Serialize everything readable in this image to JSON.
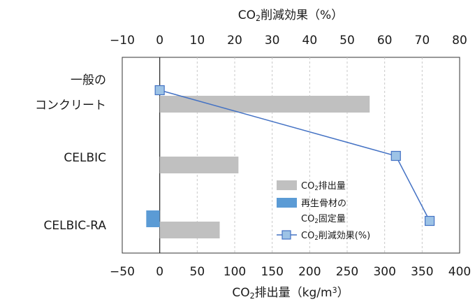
{
  "chart_data": {
    "type": "bar",
    "orientation": "horizontal",
    "categories": [
      [
        "一般の",
        "コンクリート"
      ],
      [
        "CELBIC"
      ],
      [
        "CELBIC-RA"
      ]
    ],
    "series": [
      {
        "name": "CO₂排出量",
        "kind": "bar",
        "axis": "bottom",
        "color": "#c0c0c0",
        "values": [
          280,
          105,
          80
        ]
      },
      {
        "name": "再生骨材の CO₂固定量",
        "kind": "bar",
        "axis": "bottom",
        "color": "#5b9bd5",
        "values": [
          null,
          null,
          -18
        ]
      },
      {
        "name": "CO₂削減効果(%)",
        "kind": "line",
        "axis": "top",
        "color": "#4472c4",
        "marker_fill": "#9dc3e6",
        "values": [
          0,
          63,
          72
        ]
      }
    ],
    "bottom_axis": {
      "label": "CO₂排出量（kg/m³）",
      "range": [
        -50,
        400
      ],
      "ticks": [
        -50,
        0,
        50,
        100,
        150,
        200,
        250,
        300,
        350,
        400
      ]
    },
    "top_axis": {
      "label": "CO₂削減効果（%）",
      "range": [
        -10,
        80
      ],
      "ticks": [
        -10,
        0,
        10,
        20,
        30,
        40,
        50,
        60,
        70,
        80
      ]
    },
    "grid": "vertical dashed",
    "legend": {
      "position": "bottom-right",
      "entries": [
        [
          "CO₂排出量"
        ],
        [
          "再生骨材の",
          "CO₂固定量"
        ],
        [
          "CO₂削減効果(%)"
        ]
      ]
    }
  }
}
